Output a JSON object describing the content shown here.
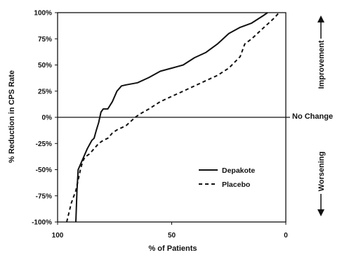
{
  "chart_data": {
    "type": "line",
    "xlabel": "% of Patients",
    "ylabel": "% Reduction in CPS Rate",
    "xlim": [
      100,
      0
    ],
    "ylim": [
      -100,
      100
    ],
    "x_ticks": [
      "100",
      "50",
      "0"
    ],
    "y_ticks": [
      "100%",
      "75%",
      "50%",
      "25%",
      "0%",
      "-25%",
      "-50%",
      "-75%",
      "-100%"
    ],
    "reference_line": {
      "y": 0,
      "label": "No Change"
    },
    "side_labels": {
      "top": "Improvement",
      "bottom": "Worsening"
    },
    "legend_position": "lower-right",
    "series": [
      {
        "name": "Depakote",
        "style": "solid",
        "x": [
          92,
          91.5,
          91,
          89,
          87,
          85,
          84,
          83,
          82,
          81,
          80,
          78,
          76,
          74,
          72,
          70,
          65,
          60,
          55,
          50,
          45,
          40,
          35,
          30,
          25,
          20,
          15,
          10,
          8
        ],
        "y": [
          -100,
          -70,
          -50,
          -40,
          -30,
          -22,
          -20,
          -12,
          -5,
          5,
          8,
          8,
          15,
          25,
          30,
          31,
          33,
          38,
          44,
          47,
          50,
          57,
          62,
          70,
          80,
          86,
          90,
          97,
          100
        ]
      },
      {
        "name": "Placebo",
        "style": "dashed",
        "x": [
          96,
          94,
          92,
          91,
          90,
          89,
          88,
          86,
          84,
          82,
          80,
          78,
          76,
          74,
          70,
          66,
          64,
          60,
          55,
          50,
          45,
          40,
          35,
          30,
          25,
          20,
          18,
          15,
          10,
          5,
          3
        ],
        "y": [
          -100,
          -82,
          -70,
          -60,
          -50,
          -42,
          -38,
          -35,
          -30,
          -25,
          -22,
          -20,
          -15,
          -12,
          -8,
          0,
          3,
          8,
          15,
          20,
          25,
          30,
          35,
          40,
          47,
          58,
          70,
          75,
          85,
          95,
          100
        ]
      }
    ]
  }
}
